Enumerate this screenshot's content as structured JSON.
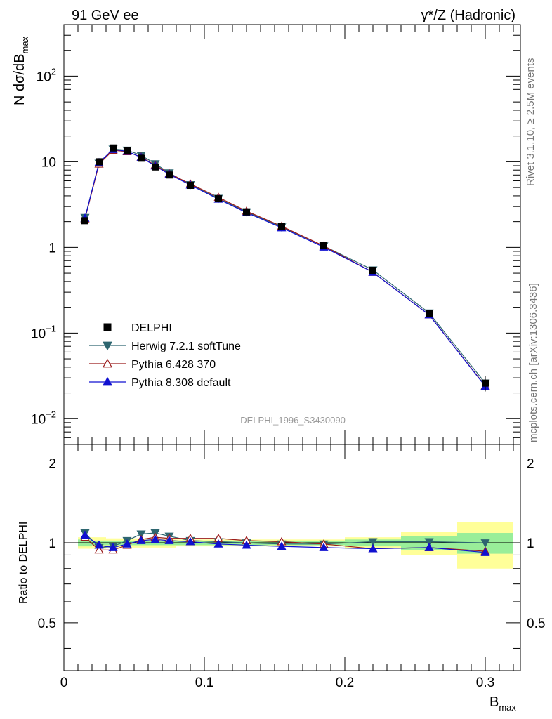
{
  "header": {
    "left_label": "91 GeV ee",
    "right_label": "γ*/Z (Hadronic)"
  },
  "side_labels": {
    "rivet": "Rivet 3.1.10, ≥ 2.5M events",
    "mcplots": "mcplots.cern.ch [arXiv:1306.3436]"
  },
  "watermark": "DELPHI_1996_S3430090",
  "axes": {
    "ylabel_main": "N dσ/dB",
    "ylabel_main_sub": "max",
    "ylabel_ratio": "Ratio to DELPHI",
    "xlabel": "B",
    "xlabel_sub": "max",
    "main_yticks": [
      {
        "value": 0.01,
        "base": "10",
        "exp": "−2"
      },
      {
        "value": 0.1,
        "base": "10",
        "exp": "−1"
      },
      {
        "value": 1,
        "base": "1",
        "exp": ""
      },
      {
        "value": 10,
        "base": "10",
        "exp": ""
      },
      {
        "value": 100,
        "base": "10",
        "exp": "2"
      }
    ],
    "ratio_yticks": [
      {
        "value": 0.5,
        "label": "0.5"
      },
      {
        "value": 1,
        "label": "1"
      },
      {
        "value": 2,
        "label": "2"
      }
    ],
    "xticks": [
      {
        "value": 0,
        "label": "0"
      },
      {
        "value": 0.1,
        "label": "0.1"
      },
      {
        "value": 0.2,
        "label": "0.2"
      },
      {
        "value": 0.3,
        "label": "0.3"
      }
    ]
  },
  "legend": [
    {
      "name": "DELPHI",
      "color": "#000000",
      "marker": "square"
    },
    {
      "name": "Herwig 7.2.1 softTune",
      "color": "#2e6670",
      "marker": "triangle-down"
    },
    {
      "name": "Pythia 6.428 370",
      "color": "#9b1b1b",
      "marker": "triangle-up-open"
    },
    {
      "name": "Pythia 8.308 default",
      "color": "#1010d0",
      "marker": "triangle-up"
    }
  ],
  "chart_data": {
    "type": "line",
    "x_range": [
      0,
      0.325
    ],
    "y_range_main": [
      0.005,
      400
    ],
    "y_scale_main": "log",
    "y_range_ratio": [
      0.33,
      2.35
    ],
    "y_scale_ratio": "log",
    "bins": [
      {
        "lo": 0.01,
        "hi": 0.02
      },
      {
        "lo": 0.02,
        "hi": 0.03
      },
      {
        "lo": 0.03,
        "hi": 0.04
      },
      {
        "lo": 0.04,
        "hi": 0.05
      },
      {
        "lo": 0.05,
        "hi": 0.06
      },
      {
        "lo": 0.06,
        "hi": 0.07
      },
      {
        "lo": 0.07,
        "hi": 0.08
      },
      {
        "lo": 0.08,
        "hi": 0.1
      },
      {
        "lo": 0.1,
        "hi": 0.12
      },
      {
        "lo": 0.12,
        "hi": 0.14
      },
      {
        "lo": 0.14,
        "hi": 0.17
      },
      {
        "lo": 0.17,
        "hi": 0.2
      },
      {
        "lo": 0.2,
        "hi": 0.24
      },
      {
        "lo": 0.24,
        "hi": 0.28
      },
      {
        "lo": 0.28,
        "hi": 0.32
      }
    ],
    "x": [
      0.015,
      0.025,
      0.035,
      0.045,
      0.055,
      0.065,
      0.075,
      0.09,
      0.11,
      0.13,
      0.155,
      0.185,
      0.22,
      0.26,
      0.3
    ],
    "data": {
      "name": "DELPHI",
      "y": [
        2.05,
        10.0,
        14.5,
        13.4,
        11.0,
        8.7,
        7.0,
        5.3,
        3.7,
        2.6,
        1.75,
        1.05,
        0.54,
        0.17,
        0.026
      ],
      "band_inner": [
        0.03,
        0.02,
        0.02,
        0.02,
        0.02,
        0.02,
        0.02,
        0.02,
        0.02,
        0.02,
        0.02,
        0.02,
        0.03,
        0.06,
        0.09
      ],
      "band_outer": [
        0.05,
        0.05,
        0.04,
        0.04,
        0.04,
        0.04,
        0.04,
        0.03,
        0.03,
        0.03,
        0.03,
        0.03,
        0.05,
        0.1,
        0.2
      ]
    },
    "series": [
      {
        "name": "Herwig 7.2.1 softTune",
        "color": "#2e6670",
        "marker": "triangle-down",
        "ratio": [
          1.09,
          0.96,
          0.97,
          1.02,
          1.08,
          1.09,
          1.06,
          1.02,
          1.01,
          1.0,
          0.99,
          0.99,
          1.01,
          1.01,
          1.0
        ]
      },
      {
        "name": "Pythia 6.428 370",
        "color": "#9b1b1b",
        "marker": "triangle-up-open",
        "ratio": [
          1.05,
          0.94,
          0.94,
          0.98,
          1.03,
          1.05,
          1.04,
          1.04,
          1.04,
          1.02,
          1.01,
          0.99,
          0.95,
          0.96,
          0.93
        ]
      },
      {
        "name": "Pythia 8.308 default",
        "color": "#1010d0",
        "marker": "triangle-up",
        "ratio": [
          1.07,
          0.98,
          0.96,
          0.99,
          1.02,
          1.03,
          1.02,
          1.01,
          0.99,
          0.98,
          0.97,
          0.96,
          0.95,
          0.96,
          0.92
        ]
      }
    ]
  }
}
